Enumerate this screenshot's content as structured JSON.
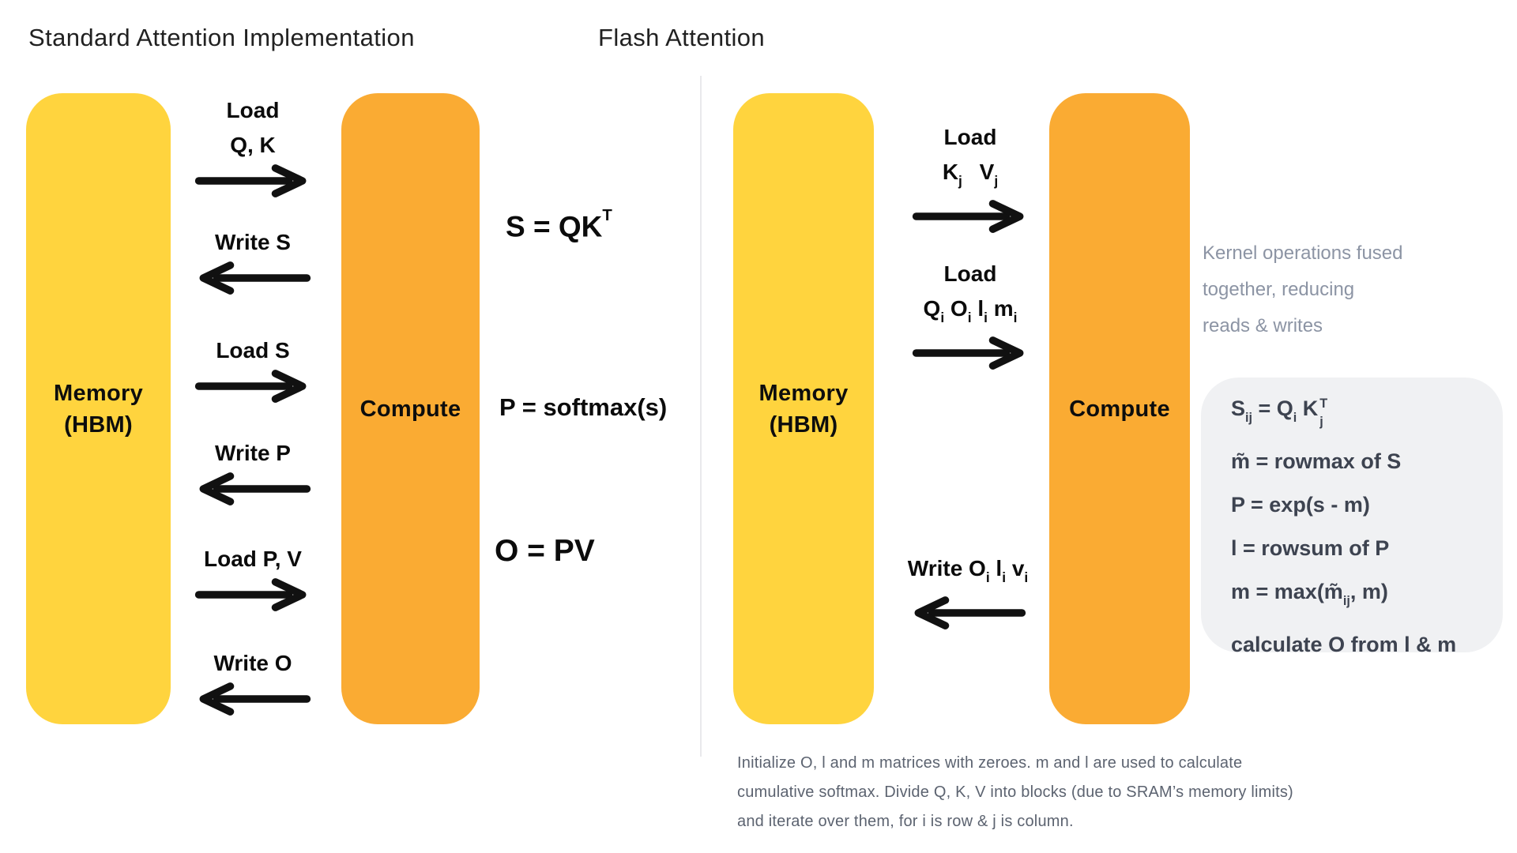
{
  "titles": {
    "left": "Standard Attention Implementation",
    "right": "Flash Attention"
  },
  "left_diagram": {
    "memory_box_lines": [
      "Memory",
      "(HBM)"
    ],
    "compute_label": "Compute",
    "flows": [
      {
        "dir": "right",
        "label_lines": [
          [
            {
              "t": "Load"
            }
          ],
          [
            {
              "t": "Q, K"
            }
          ]
        ]
      },
      {
        "dir": "left",
        "label_lines": [
          [
            {
              "t": "Write S"
            }
          ]
        ]
      },
      {
        "dir": "right",
        "label_lines": [
          [
            {
              "t": "Load S"
            }
          ]
        ]
      },
      {
        "dir": "left",
        "label_lines": [
          [
            {
              "t": "Write P"
            }
          ]
        ]
      },
      {
        "dir": "right",
        "label_lines": [
          [
            {
              "t": "Load P, V"
            }
          ]
        ]
      },
      {
        "dir": "left",
        "label_lines": [
          [
            {
              "t": "Write O"
            }
          ]
        ]
      }
    ],
    "formulas": [
      {
        "parts": [
          {
            "t": "S = QK"
          },
          {
            "t": "T",
            "sup": true
          }
        ]
      },
      {
        "parts": [
          {
            "t": "P = softmax(s)"
          }
        ]
      },
      {
        "parts": [
          {
            "t": "O = PV"
          }
        ]
      }
    ]
  },
  "right_diagram": {
    "memory_box_lines": [
      "Memory",
      "(HBM)"
    ],
    "compute_label": "Compute",
    "flows": [
      {
        "dir": "right",
        "label_lines": [
          [
            {
              "t": "Load"
            }
          ],
          [
            {
              "t": "K"
            },
            {
              "t": "j",
              "sub": true
            },
            {
              "t": "  V"
            },
            {
              "t": "j",
              "sub": true
            }
          ]
        ]
      },
      {
        "dir": "right",
        "label_lines": [
          [
            {
              "t": "Load"
            }
          ],
          [
            {
              "t": "Q"
            },
            {
              "t": "i",
              "sub": true
            },
            {
              "t": " O"
            },
            {
              "t": "i",
              "sub": true
            },
            {
              "t": " l"
            },
            {
              "t": "i",
              "sub": true
            },
            {
              "t": " m"
            },
            {
              "t": "i",
              "sub": true
            }
          ]
        ]
      },
      {
        "dir": "left",
        "label_lines": [
          [
            {
              "t": "Write O"
            },
            {
              "t": "i",
              "sub": true
            },
            {
              "t": " l"
            },
            {
              "t": "i",
              "sub": true
            },
            {
              "t": " v"
            },
            {
              "t": "i",
              "sub": true
            }
          ]
        ]
      }
    ],
    "note_lines": [
      "Kernel operations fused",
      "together, reducing",
      "reads & writes"
    ],
    "kernel_formulas": [
      {
        "parts": [
          {
            "t": "S"
          },
          {
            "t": "ij",
            "sub": true
          },
          {
            "t": " = Q"
          },
          {
            "t": "i",
            "sub": true
          },
          {
            "t": " K"
          },
          {
            "stack": {
              "top": "T",
              "bottom": "j"
            }
          }
        ]
      },
      {
        "parts": [
          {
            "t": "m̃ = rowmax of S"
          }
        ]
      },
      {
        "parts": [
          {
            "t": "P = exp(s - m)"
          }
        ]
      },
      {
        "parts": [
          {
            "t": "l = rowsum of P"
          }
        ]
      },
      {
        "parts": [
          {
            "t": "m = max(m̃"
          },
          {
            "t": "ij",
            "sub": true
          },
          {
            "t": ", m)"
          }
        ]
      },
      {
        "parts": [
          {
            "t": "calculate O from l & m"
          }
        ]
      }
    ],
    "caption_lines": [
      "Initialize O, l and m matrices with zeroes. m and l are used to calculate",
      "cumulative softmax. Divide Q, K, V into blocks (due to SRAM’s memory limits)",
      "and iterate over them, for i is row & j is column."
    ]
  },
  "colors": {
    "memory_yellow": "#FFD43E",
    "compute_orange": "#FAAB33",
    "arrow_black": "#111111",
    "note_gray": "#8C94A4",
    "kernel_formula_gray": "#3D4350",
    "caption_gray": "#5C6370",
    "kernel_box_bg": "#F0F1F3",
    "divider_gray": "#E9E9EC"
  }
}
